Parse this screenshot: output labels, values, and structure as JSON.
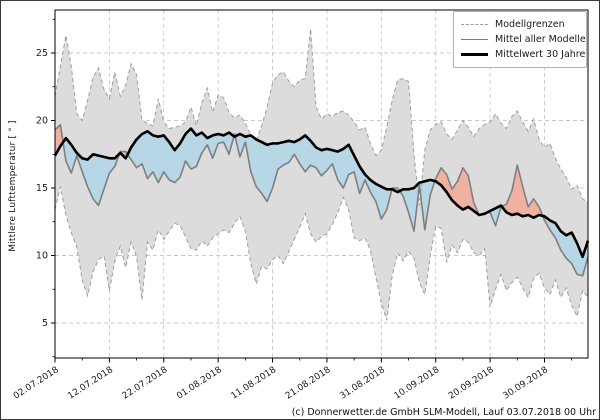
{
  "figure": {
    "caption": "(c) Donnerwetter.de GmbH SLM-Modell, Lauf 03.07.2018 00 Uhr"
  },
  "legend": {
    "position": "upper right",
    "items": [
      {
        "label": "Modellgrenzen",
        "style": "dashed-gray"
      },
      {
        "label": "Mittel aller Modelle",
        "style": "solid-gray"
      },
      {
        "label": "Mittelwert 30 Jahre",
        "style": "thick-black"
      }
    ]
  },
  "axes": {
    "ylabel": "Mittlere Lufttemperatur [ ° ]",
    "yticks": [
      5,
      10,
      15,
      20,
      25
    ],
    "ylim": [
      2.4,
      28.2
    ],
    "grid": true,
    "xtick_labels": [
      "02.07.2018",
      "12.07.2018",
      "22.07.2018",
      "01.08.2018",
      "11.08.2018",
      "21.08.2018",
      "31.08.2018",
      "10.09.2018",
      "20.09.2018",
      "30.09.2018"
    ],
    "xtick_days": [
      0,
      10,
      20,
      30,
      40,
      50,
      60,
      70,
      80,
      90
    ],
    "x_range_days": [
      0,
      98
    ]
  },
  "chart_data": {
    "type": "line",
    "title": "",
    "xlabel": "",
    "ylabel": "Mittlere Lufttemperatur [ ° ]",
    "x_start_date": "02.07.2018",
    "x_step": "1 day",
    "n_points": 99,
    "ylim": [
      2.4,
      28.2
    ],
    "legend_position": "upper right",
    "grid": true,
    "colors": {
      "envelope_fill": "#dcdcdc",
      "envelope_edge": "#9e9e9e",
      "model_mean_line": "#7f7f7f",
      "mean30_line": "#000000",
      "warmer_fill": "#f0b1a3",
      "colder_fill": "#b7d6e6",
      "gridline": "#c9c9c9",
      "spine": "#000000"
    },
    "series": [
      {
        "name": "Modellgrenzen (obere Grenze)",
        "role": "upper_bound",
        "values": [
          21.8,
          24.0,
          26.3,
          24.0,
          20.5,
          20.0,
          21.5,
          23.2,
          23.9,
          22.3,
          21.6,
          23.6,
          21.8,
          22.6,
          24.2,
          23.4,
          20.0,
          19.8,
          19.6,
          21.6,
          19.9,
          19.4,
          19.5,
          19.6,
          19.9,
          21.0,
          19.6,
          21.3,
          22.4,
          20.6,
          21.9,
          21.7,
          20.6,
          20.2,
          20.4,
          19.8,
          18.9,
          18.5,
          19.6,
          21.0,
          22.8,
          23.4,
          23.6,
          22.9,
          22.5,
          23.0,
          23.1,
          26.8,
          21.0,
          20.1,
          20.5,
          20.3,
          20.6,
          20.7,
          20.4,
          19.9,
          19.3,
          19.5,
          18.3,
          17.4,
          17.8,
          19.5,
          21.5,
          23.0,
          23.1,
          22.9,
          17.5,
          13.7,
          17.8,
          19.3,
          19.7,
          19.9,
          19.0,
          18.6,
          19.3,
          20.0,
          19.5,
          18.8,
          19.4,
          19.7,
          19.9,
          20.5,
          19.8,
          19.4,
          20.3,
          20.7,
          19.9,
          19.2,
          20.1,
          18.6,
          18.0,
          18.3,
          17.2,
          16.4,
          15.8,
          14.9,
          15.2,
          14.2,
          13.9
        ]
      },
      {
        "name": "Modellgrenzen (untere Grenze)",
        "role": "lower_bound",
        "values": [
          13.4,
          15.1,
          13.0,
          11.7,
          10.6,
          8.2,
          7.0,
          8.8,
          9.7,
          10.0,
          7.4,
          9.6,
          10.7,
          9.1,
          11.0,
          9.9,
          6.7,
          11.0,
          10.4,
          11.9,
          11.2,
          11.8,
          12.4,
          12.2,
          11.4,
          10.5,
          10.4,
          11.1,
          10.7,
          11.3,
          11.6,
          11.9,
          11.7,
          12.4,
          12.9,
          11.8,
          9.4,
          7.9,
          9.2,
          9.0,
          9.7,
          10.0,
          9.4,
          10.3,
          11.2,
          12.1,
          13.1,
          11.6,
          11.0,
          11.4,
          11.6,
          12.3,
          13.2,
          14.3,
          13.4,
          11.3,
          11.1,
          11.3,
          10.4,
          8.4,
          6.5,
          5.2,
          8.5,
          10.2,
          9.6,
          10.3,
          9.8,
          8.0,
          7.1,
          10.0,
          12.2,
          12.0,
          9.5,
          10.8,
          10.2,
          11.2,
          11.0,
          10.2,
          10.0,
          10.5,
          6.2,
          7.5,
          8.6,
          7.4,
          8.0,
          8.4,
          7.6,
          6.9,
          8.3,
          8.7,
          7.6,
          7.1,
          8.2,
          6.9,
          7.6,
          6.3,
          5.5,
          7.4,
          6.9
        ]
      },
      {
        "name": "Mittel aller Modelle",
        "role": "model_mean",
        "values": [
          19.3,
          19.7,
          17.0,
          16.1,
          17.4,
          16.2,
          15.1,
          14.2,
          13.7,
          14.9,
          16.1,
          16.6,
          17.7,
          17.7,
          17.1,
          16.5,
          16.8,
          15.7,
          16.2,
          15.4,
          16.2,
          15.6,
          15.4,
          15.8,
          17.0,
          16.4,
          16.6,
          17.6,
          18.2,
          17.2,
          18.3,
          18.4,
          17.5,
          19.0,
          17.3,
          18.4,
          16.2,
          15.1,
          14.6,
          14.0,
          15.0,
          16.4,
          16.7,
          16.9,
          17.5,
          16.8,
          16.2,
          16.7,
          16.5,
          15.9,
          16.3,
          16.8,
          15.6,
          15.0,
          16.0,
          16.2,
          14.6,
          15.6,
          14.7,
          14.0,
          12.7,
          13.4,
          15.0,
          15.0,
          14.4,
          13.2,
          11.8,
          15.2,
          11.9,
          14.5,
          15.7,
          16.5,
          16.0,
          14.9,
          15.5,
          16.5,
          15.9,
          13.9,
          13.0,
          13.1,
          13.2,
          12.2,
          13.6,
          13.8,
          14.8,
          16.7,
          15.1,
          13.6,
          14.2,
          13.6,
          12.6,
          11.9,
          11.3,
          10.4,
          9.8,
          9.4,
          8.6,
          8.5,
          9.9
        ]
      },
      {
        "name": "Mittelwert 30 Jahre",
        "role": "mean_30y",
        "values": [
          17.4,
          18.1,
          18.7,
          18.2,
          17.6,
          17.2,
          17.1,
          17.5,
          17.4,
          17.3,
          17.2,
          17.2,
          17.6,
          17.2,
          18.0,
          18.6,
          19.0,
          19.2,
          18.9,
          18.8,
          18.9,
          18.4,
          17.8,
          18.3,
          19.0,
          19.4,
          18.9,
          19.1,
          18.7,
          18.9,
          19.0,
          18.9,
          19.1,
          18.8,
          19.0,
          18.8,
          18.9,
          18.6,
          18.4,
          18.2,
          18.3,
          18.3,
          18.4,
          18.5,
          18.4,
          18.6,
          18.9,
          18.5,
          18.0,
          17.8,
          17.9,
          17.8,
          17.7,
          17.9,
          18.2,
          17.4,
          16.6,
          16.0,
          15.6,
          15.3,
          15.1,
          14.9,
          14.9,
          14.7,
          14.9,
          14.9,
          15.0,
          15.4,
          15.5,
          15.6,
          15.5,
          15.2,
          14.7,
          14.1,
          13.7,
          13.4,
          13.6,
          13.3,
          13.0,
          13.1,
          13.3,
          13.5,
          13.7,
          13.2,
          13.0,
          13.1,
          12.9,
          13.0,
          12.8,
          13.0,
          12.9,
          12.6,
          12.4,
          11.8,
          11.5,
          11.7,
          10.9,
          9.9,
          11.1
        ]
      }
    ]
  }
}
